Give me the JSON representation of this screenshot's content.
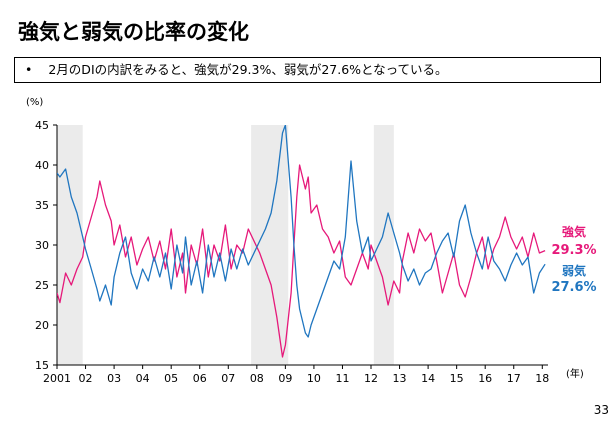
{
  "title": "強気と弱気の比率の変化",
  "summary": {
    "bullet": "•",
    "text": "2月のDIの内訳をみると、強気が29.3%、弱気が27.6%となっている。"
  },
  "page_number": "33",
  "chart_data": {
    "type": "line",
    "y_unit_label": "(%)",
    "x_unit_label": "(年)",
    "ylim": [
      15,
      45
    ],
    "yticks": [
      15,
      20,
      25,
      30,
      35,
      40,
      45
    ],
    "xlim": [
      2001.0,
      2018.2
    ],
    "xticks": [
      {
        "label": "2001",
        "x": 2001.0
      },
      {
        "label": "02",
        "x": 2002.0
      },
      {
        "label": "03",
        "x": 2003.0
      },
      {
        "label": "04",
        "x": 2004.0
      },
      {
        "label": "05",
        "x": 2005.0
      },
      {
        "label": "06",
        "x": 2006.0
      },
      {
        "label": "07",
        "x": 2007.0
      },
      {
        "label": "08",
        "x": 2008.0
      },
      {
        "label": "09",
        "x": 2009.0
      },
      {
        "label": "10",
        "x": 2010.0
      },
      {
        "label": "11",
        "x": 2011.0
      },
      {
        "label": "12",
        "x": 2012.0
      },
      {
        "label": "13",
        "x": 2013.0
      },
      {
        "label": "14",
        "x": 2014.0
      },
      {
        "label": "15",
        "x": 2015.0
      },
      {
        "label": "16",
        "x": 2016.0
      },
      {
        "label": "17",
        "x": 2017.0
      },
      {
        "label": "18",
        "x": 2018.0
      }
    ],
    "recession_periods": [
      [
        2001.0,
        2001.9
      ],
      [
        2007.8,
        2009.1
      ],
      [
        2012.1,
        2012.8
      ]
    ],
    "recession_color": "#ebebeb",
    "series": [
      {
        "name": "強気",
        "latest_value": "29.3%",
        "color": "#e6197a",
        "points": [
          [
            2001.0,
            24.0
          ],
          [
            2001.1,
            22.8
          ],
          [
            2001.3,
            26.5
          ],
          [
            2001.5,
            25.0
          ],
          [
            2001.7,
            27.0
          ],
          [
            2001.9,
            28.5
          ],
          [
            2002.0,
            31.0
          ],
          [
            2002.2,
            33.5
          ],
          [
            2002.4,
            36.0
          ],
          [
            2002.5,
            38.0
          ],
          [
            2002.7,
            35.0
          ],
          [
            2002.9,
            33.0
          ],
          [
            2003.0,
            30.0
          ],
          [
            2003.2,
            32.5
          ],
          [
            2003.4,
            28.5
          ],
          [
            2003.6,
            31.0
          ],
          [
            2003.8,
            27.5
          ],
          [
            2004.0,
            29.5
          ],
          [
            2004.2,
            31.0
          ],
          [
            2004.4,
            28.0
          ],
          [
            2004.6,
            30.5
          ],
          [
            2004.8,
            27.0
          ],
          [
            2005.0,
            32.0
          ],
          [
            2005.2,
            26.0
          ],
          [
            2005.4,
            29.0
          ],
          [
            2005.5,
            24.0
          ],
          [
            2005.7,
            30.0
          ],
          [
            2005.9,
            27.5
          ],
          [
            2006.1,
            32.0
          ],
          [
            2006.3,
            26.0
          ],
          [
            2006.5,
            30.0
          ],
          [
            2006.7,
            28.0
          ],
          [
            2006.9,
            32.5
          ],
          [
            2007.1,
            27.0
          ],
          [
            2007.3,
            30.0
          ],
          [
            2007.5,
            29.0
          ],
          [
            2007.7,
            32.0
          ],
          [
            2007.9,
            30.5
          ],
          [
            2008.1,
            29.0
          ],
          [
            2008.3,
            27.0
          ],
          [
            2008.5,
            25.0
          ],
          [
            2008.7,
            21.0
          ],
          [
            2008.9,
            16.0
          ],
          [
            2009.0,
            17.5
          ],
          [
            2009.2,
            24.0
          ],
          [
            2009.3,
            30.0
          ],
          [
            2009.4,
            36.0
          ],
          [
            2009.5,
            40.0
          ],
          [
            2009.7,
            37.0
          ],
          [
            2009.8,
            38.5
          ],
          [
            2009.9,
            34.0
          ],
          [
            2010.1,
            35.0
          ],
          [
            2010.3,
            32.0
          ],
          [
            2010.5,
            31.0
          ],
          [
            2010.7,
            29.0
          ],
          [
            2010.9,
            30.5
          ],
          [
            2011.1,
            26.0
          ],
          [
            2011.3,
            25.0
          ],
          [
            2011.5,
            27.0
          ],
          [
            2011.7,
            29.0
          ],
          [
            2011.9,
            27.0
          ],
          [
            2012.0,
            30.0
          ],
          [
            2012.2,
            28.0
          ],
          [
            2012.4,
            26.0
          ],
          [
            2012.6,
            22.5
          ],
          [
            2012.8,
            25.5
          ],
          [
            2013.0,
            24.0
          ],
          [
            2013.1,
            28.0
          ],
          [
            2013.3,
            31.5
          ],
          [
            2013.5,
            29.0
          ],
          [
            2013.7,
            32.0
          ],
          [
            2013.9,
            30.5
          ],
          [
            2014.1,
            31.5
          ],
          [
            2014.3,
            28.0
          ],
          [
            2014.5,
            24.0
          ],
          [
            2014.7,
            26.5
          ],
          [
            2014.9,
            29.0
          ],
          [
            2015.1,
            25.0
          ],
          [
            2015.3,
            23.5
          ],
          [
            2015.5,
            26.0
          ],
          [
            2015.7,
            29.0
          ],
          [
            2015.9,
            31.0
          ],
          [
            2016.1,
            27.0
          ],
          [
            2016.3,
            29.5
          ],
          [
            2016.5,
            31.0
          ],
          [
            2016.7,
            33.5
          ],
          [
            2016.9,
            31.0
          ],
          [
            2017.1,
            29.5
          ],
          [
            2017.3,
            31.0
          ],
          [
            2017.5,
            28.5
          ],
          [
            2017.7,
            31.5
          ],
          [
            2017.9,
            29.0
          ],
          [
            2018.1,
            29.3
          ]
        ]
      },
      {
        "name": "弱気",
        "latest_value": "27.6%",
        "color": "#2076c0",
        "points": [
          [
            2001.0,
            39.0
          ],
          [
            2001.1,
            38.5
          ],
          [
            2001.3,
            39.5
          ],
          [
            2001.5,
            36.0
          ],
          [
            2001.7,
            34.0
          ],
          [
            2001.9,
            31.0
          ],
          [
            2002.0,
            29.5
          ],
          [
            2002.2,
            27.0
          ],
          [
            2002.4,
            24.5
          ],
          [
            2002.5,
            23.0
          ],
          [
            2002.7,
            25.0
          ],
          [
            2002.9,
            22.5
          ],
          [
            2003.0,
            26.0
          ],
          [
            2003.2,
            29.0
          ],
          [
            2003.4,
            31.0
          ],
          [
            2003.6,
            26.5
          ],
          [
            2003.8,
            24.5
          ],
          [
            2004.0,
            27.0
          ],
          [
            2004.2,
            25.5
          ],
          [
            2004.4,
            28.5
          ],
          [
            2004.6,
            26.0
          ],
          [
            2004.8,
            29.0
          ],
          [
            2005.0,
            24.5
          ],
          [
            2005.2,
            30.0
          ],
          [
            2005.4,
            26.5
          ],
          [
            2005.5,
            31.0
          ],
          [
            2005.7,
            25.0
          ],
          [
            2005.9,
            28.0
          ],
          [
            2006.1,
            24.0
          ],
          [
            2006.3,
            30.0
          ],
          [
            2006.5,
            26.0
          ],
          [
            2006.7,
            29.0
          ],
          [
            2006.9,
            25.5
          ],
          [
            2007.1,
            29.5
          ],
          [
            2007.3,
            27.0
          ],
          [
            2007.5,
            29.5
          ],
          [
            2007.7,
            27.5
          ],
          [
            2007.9,
            29.0
          ],
          [
            2008.1,
            30.5
          ],
          [
            2008.3,
            32.0
          ],
          [
            2008.5,
            34.0
          ],
          [
            2008.7,
            38.0
          ],
          [
            2008.9,
            44.0
          ],
          [
            2009.0,
            45.0
          ],
          [
            2009.2,
            36.0
          ],
          [
            2009.3,
            30.0
          ],
          [
            2009.4,
            25.0
          ],
          [
            2009.5,
            22.0
          ],
          [
            2009.7,
            19.0
          ],
          [
            2009.8,
            18.5
          ],
          [
            2009.9,
            20.0
          ],
          [
            2010.1,
            22.0
          ],
          [
            2010.3,
            24.0
          ],
          [
            2010.5,
            26.0
          ],
          [
            2010.7,
            28.0
          ],
          [
            2010.9,
            27.0
          ],
          [
            2011.1,
            31.0
          ],
          [
            2011.3,
            40.5
          ],
          [
            2011.5,
            33.0
          ],
          [
            2011.7,
            29.0
          ],
          [
            2011.9,
            31.0
          ],
          [
            2012.0,
            28.0
          ],
          [
            2012.2,
            29.5
          ],
          [
            2012.4,
            31.0
          ],
          [
            2012.6,
            34.0
          ],
          [
            2012.8,
            31.5
          ],
          [
            2013.0,
            29.0
          ],
          [
            2013.1,
            27.5
          ],
          [
            2013.3,
            25.5
          ],
          [
            2013.5,
            27.0
          ],
          [
            2013.7,
            25.0
          ],
          [
            2013.9,
            26.5
          ],
          [
            2014.1,
            27.0
          ],
          [
            2014.3,
            29.0
          ],
          [
            2014.5,
            30.5
          ],
          [
            2014.7,
            31.5
          ],
          [
            2014.9,
            28.5
          ],
          [
            2015.1,
            33.0
          ],
          [
            2015.3,
            35.0
          ],
          [
            2015.5,
            31.5
          ],
          [
            2015.7,
            29.0
          ],
          [
            2015.9,
            27.0
          ],
          [
            2016.1,
            31.0
          ],
          [
            2016.3,
            28.0
          ],
          [
            2016.5,
            27.0
          ],
          [
            2016.7,
            25.5
          ],
          [
            2016.9,
            27.5
          ],
          [
            2017.1,
            29.0
          ],
          [
            2017.3,
            27.5
          ],
          [
            2017.5,
            28.5
          ],
          [
            2017.7,
            24.0
          ],
          [
            2017.9,
            26.5
          ],
          [
            2018.1,
            27.6
          ]
        ]
      }
    ]
  }
}
